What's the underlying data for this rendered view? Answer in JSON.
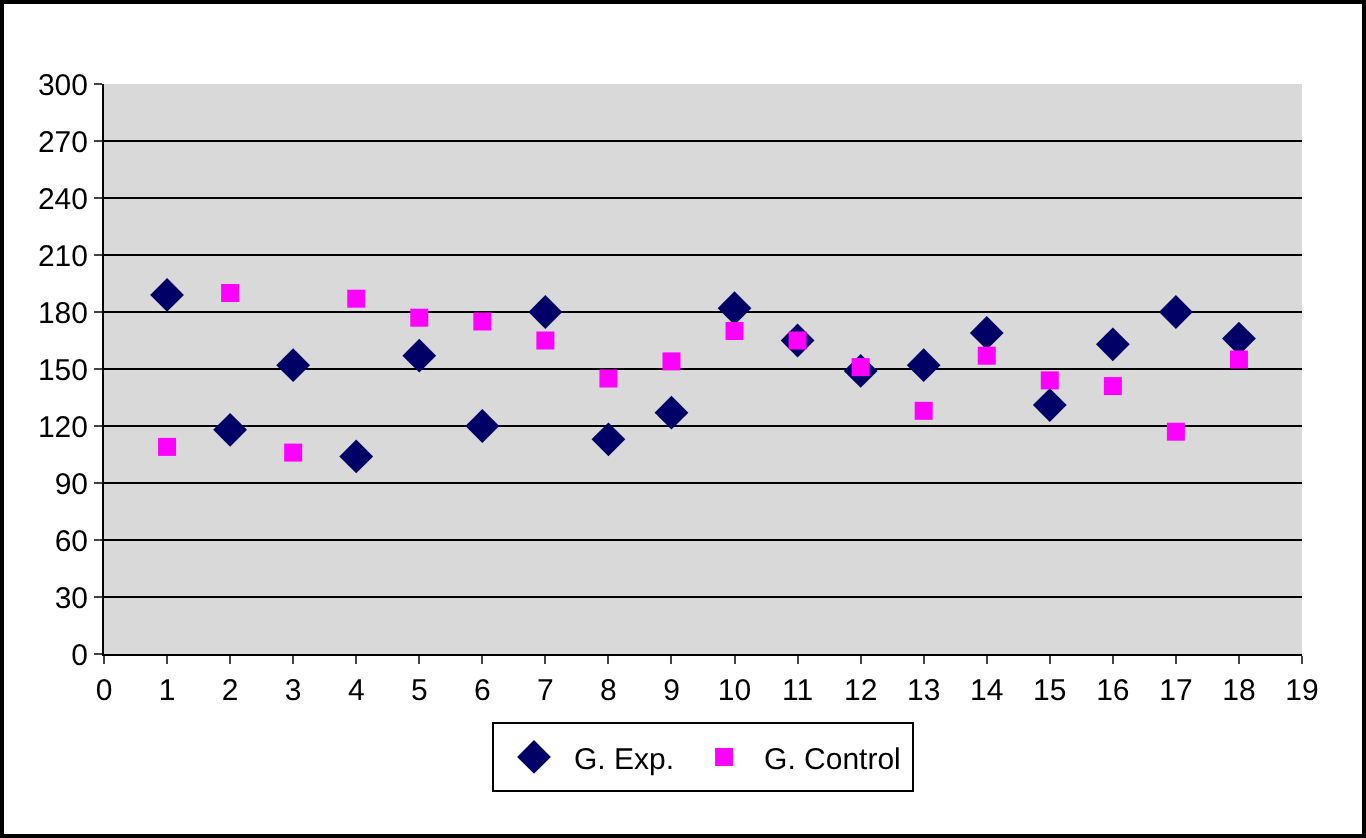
{
  "chart_data": {
    "type": "scatter",
    "x": [
      1,
      2,
      3,
      4,
      5,
      6,
      7,
      8,
      9,
      10,
      11,
      12,
      13,
      14,
      15,
      16,
      17,
      18
    ],
    "series": [
      {
        "name": "G. Exp.",
        "color": "#000066",
        "marker": "diamond",
        "values": [
          189,
          118,
          152,
          104,
          157,
          120,
          180,
          113,
          127,
          182,
          165,
          149,
          152,
          169,
          131,
          163,
          180,
          166
        ]
      },
      {
        "name": "G. Control",
        "color": "#ff00ff",
        "marker": "square",
        "values": [
          109,
          190,
          106,
          187,
          177,
          175,
          165,
          145,
          154,
          170,
          165,
          151,
          128,
          157,
          144,
          141,
          117,
          155
        ]
      }
    ],
    "xlim": [
      0,
      19
    ],
    "xticks": [
      0,
      1,
      2,
      3,
      4,
      5,
      6,
      7,
      8,
      9,
      10,
      11,
      12,
      13,
      14,
      15,
      16,
      17,
      18,
      19
    ],
    "ylim": [
      0,
      300
    ],
    "yticks": [
      0,
      30,
      60,
      90,
      120,
      150,
      180,
      210,
      240,
      270,
      300
    ],
    "grid": "y",
    "legend": "bottom"
  }
}
